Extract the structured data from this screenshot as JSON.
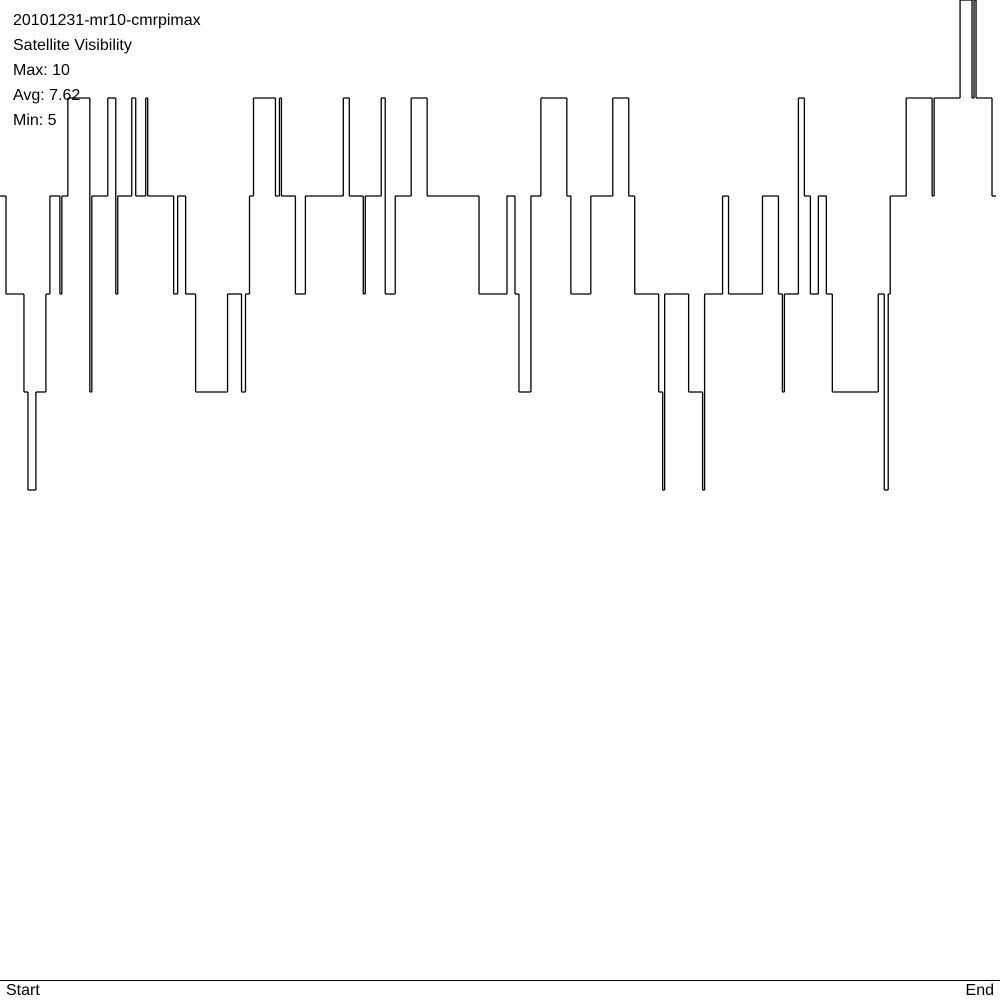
{
  "chart_data": {
    "type": "step",
    "title": "20101231-mr10-cmrpimax",
    "subtitle": "Satellite Visibility",
    "annotations": [
      "Max: 10",
      "Avg: 7.62",
      "Min: 5"
    ],
    "x_start_label": "Start",
    "x_end_label": "End",
    "color": "#000000",
    "xlim": [
      0,
      1000
    ],
    "ylim": [
      0,
      10
    ],
    "x": [
      0,
      6,
      24,
      28,
      36,
      46,
      50,
      60,
      62,
      68,
      90,
      92,
      108,
      116,
      118,
      132,
      136,
      146,
      148,
      174,
      178,
      186,
      196,
      228,
      242,
      246,
      250,
      254,
      276,
      280,
      282,
      296,
      306,
      344,
      350,
      364,
      366,
      382,
      386,
      396,
      412,
      428,
      480,
      508,
      516,
      520,
      532,
      542,
      568,
      572,
      592,
      614,
      630,
      636,
      660,
      664,
      666,
      690,
      704,
      706,
      724,
      730,
      764,
      780,
      784,
      786,
      800,
      806,
      812,
      820,
      828,
      834,
      880,
      886,
      890,
      892,
      908,
      934,
      936,
      962,
      974,
      976,
      978,
      994
    ],
    "values": [
      8,
      7,
      6,
      5,
      6,
      7,
      8,
      7,
      8,
      9,
      6,
      8,
      9,
      7,
      8,
      9,
      8,
      9,
      8,
      7,
      8,
      7,
      6,
      7,
      6,
      7,
      8,
      9,
      8,
      9,
      8,
      7,
      8,
      9,
      8,
      7,
      8,
      9,
      7,
      8,
      9,
      8,
      7,
      8,
      7,
      6,
      8,
      9,
      8,
      7,
      8,
      9,
      8,
      7,
      6,
      5,
      7,
      6,
      5,
      7,
      8,
      7,
      8,
      7,
      6,
      7,
      9,
      8,
      7,
      8,
      7,
      6,
      7,
      5,
      7,
      8,
      9,
      8,
      9,
      10,
      9,
      10,
      9,
      8
    ]
  }
}
